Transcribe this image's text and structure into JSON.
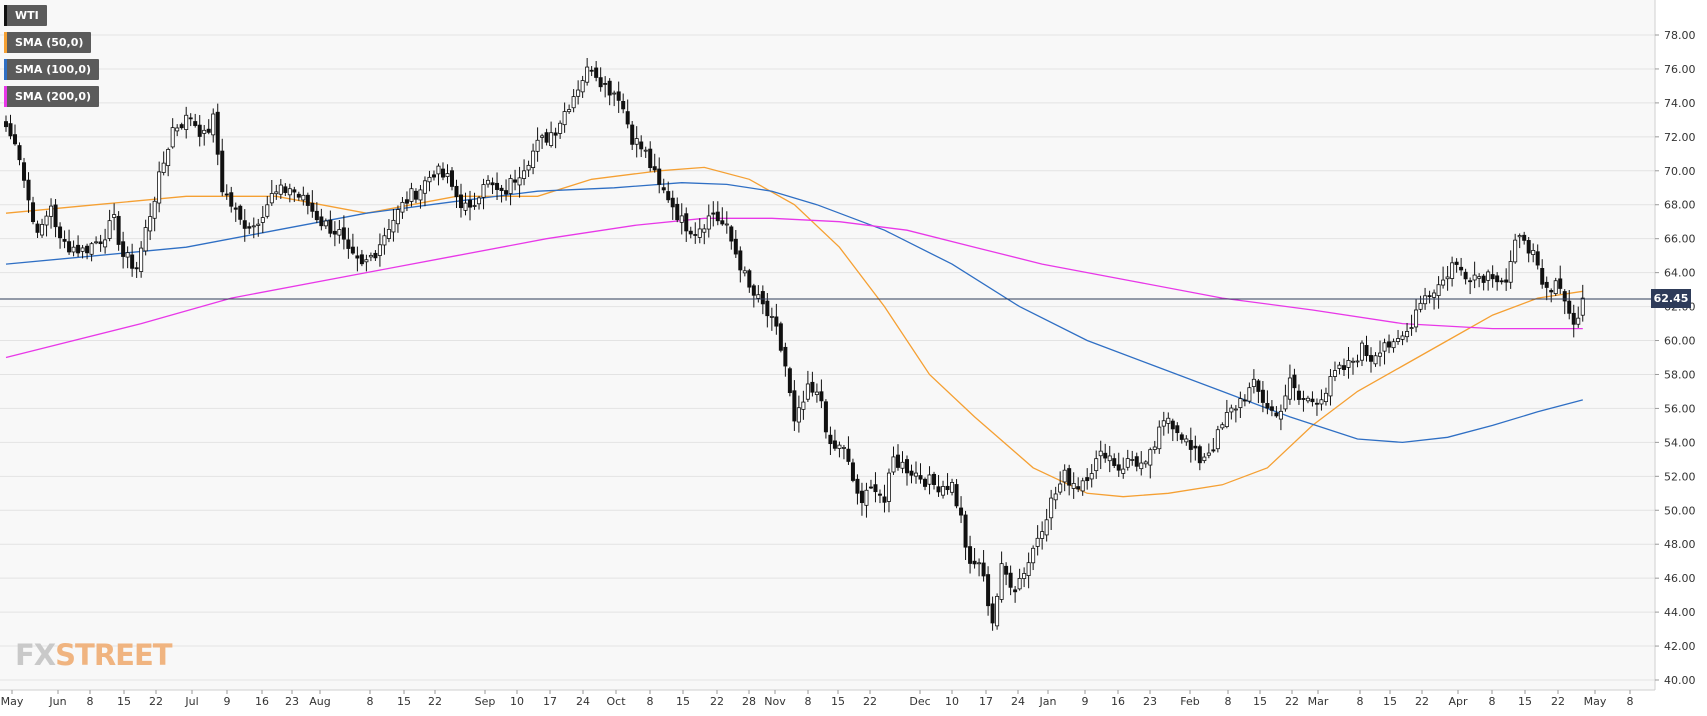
{
  "legend": [
    {
      "label": "WTI",
      "color": "#111111"
    },
    {
      "label": "SMA (50,0)",
      "color": "#f5a033"
    },
    {
      "label": "SMA (100,0)",
      "color": "#2f6fc4"
    },
    {
      "label": "SMA (200,0)",
      "color": "#e838e8"
    }
  ],
  "logo": {
    "part1": "FX",
    "part2": "STREET"
  },
  "last_price": "62.45",
  "chart_data": {
    "type": "candlestick",
    "instrument": "WTI",
    "timeframe": "daily",
    "y_axis": {
      "min": 40,
      "max": 78,
      "step": 2,
      "side": "right",
      "ticks": [
        "40.00",
        "42.00",
        "44.00",
        "46.00",
        "48.00",
        "50.00",
        "52.00",
        "54.00",
        "56.00",
        "58.00",
        "60.00",
        "62.00",
        "64.00",
        "66.00",
        "68.00",
        "70.00",
        "72.00",
        "74.00",
        "76.00",
        "78.00"
      ]
    },
    "x_axis": {
      "labels": [
        "May",
        "Jun",
        "8",
        "15",
        "22",
        "Jul",
        "9",
        "16",
        "23",
        "Aug",
        "8",
        "15",
        "22",
        "Sep",
        "10",
        "17",
        "24",
        "Oct",
        "8",
        "15",
        "22",
        "28",
        "Nov",
        "8",
        "15",
        "22",
        "Dec",
        "10",
        "17",
        "24",
        "Jan",
        "9",
        "16",
        "23",
        "Feb",
        "8",
        "15",
        "22",
        "Mar",
        "8",
        "15",
        "22",
        "Apr",
        "8",
        "15",
        "22",
        "May",
        "8"
      ]
    },
    "current_price": 62.45,
    "grid": true,
    "close_keypoints": [
      [
        0,
        72.6
      ],
      [
        3,
        71.0
      ],
      [
        6,
        67.0
      ],
      [
        8,
        66.5
      ],
      [
        10,
        68.0
      ],
      [
        12,
        65.8
      ],
      [
        17,
        65.3
      ],
      [
        21,
        66.0
      ],
      [
        24,
        67.0
      ],
      [
        26,
        65.0
      ],
      [
        29,
        64.3
      ],
      [
        31,
        66.5
      ],
      [
        34,
        69.5
      ],
      [
        37,
        72.5
      ],
      [
        41,
        73.2
      ],
      [
        44,
        72.0
      ],
      [
        46,
        73.0
      ],
      [
        48,
        69.0
      ],
      [
        52,
        67.0
      ],
      [
        55,
        66.8
      ],
      [
        59,
        68.5
      ],
      [
        63,
        69.0
      ],
      [
        67,
        68.0
      ],
      [
        70,
        67.0
      ],
      [
        74,
        66.3
      ],
      [
        76,
        65.0
      ],
      [
        79,
        64.3
      ],
      [
        82,
        65.3
      ],
      [
        85,
        66.8
      ],
      [
        89,
        68.3
      ],
      [
        92,
        69.0
      ],
      [
        95,
        70.0
      ],
      [
        98,
        69.5
      ],
      [
        100,
        68.5
      ],
      [
        103,
        67.5
      ],
      [
        106,
        69.5
      ],
      [
        110,
        68.5
      ],
      [
        114,
        70.0
      ],
      [
        118,
        71.5
      ],
      [
        122,
        72.5
      ],
      [
        125,
        74.0
      ],
      [
        128,
        75.5
      ],
      [
        130,
        76.2
      ],
      [
        133,
        75.0
      ],
      [
        136,
        74.5
      ],
      [
        139,
        72.0
      ],
      [
        142,
        71.0
      ],
      [
        145,
        69.0
      ],
      [
        147,
        68.5
      ],
      [
        150,
        67.0
      ],
      [
        153,
        66.5
      ],
      [
        157,
        67.5
      ],
      [
        160,
        66.5
      ],
      [
        163,
        64.5
      ],
      [
        165,
        63.0
      ],
      [
        168,
        62.0
      ],
      [
        171,
        60.5
      ],
      [
        173,
        58.5
      ],
      [
        175,
        55.0
      ],
      [
        178,
        57.0
      ],
      [
        181,
        56.5
      ],
      [
        183,
        53.5
      ],
      [
        186,
        53.8
      ],
      [
        188,
        51.5
      ],
      [
        190,
        50.5
      ],
      [
        193,
        51.5
      ],
      [
        195,
        50.5
      ],
      [
        197,
        53.0
      ],
      [
        200,
        52.5
      ],
      [
        203,
        52.0
      ],
      [
        206,
        51.5
      ],
      [
        210,
        51.5
      ],
      [
        212,
        49.5
      ],
      [
        214,
        46.5
      ],
      [
        216,
        47.0
      ],
      [
        219,
        43.5
      ],
      [
        221,
        46.5
      ],
      [
        224,
        45.5
      ],
      [
        227,
        47.0
      ],
      [
        229,
        48.5
      ],
      [
        232,
        50.5
      ],
      [
        235,
        52.0
      ],
      [
        238,
        51.5
      ],
      [
        241,
        52.5
      ],
      [
        244,
        53.5
      ],
      [
        247,
        52.5
      ],
      [
        250,
        53.0
      ],
      [
        253,
        52.5
      ],
      [
        256,
        54.5
      ],
      [
        258,
        55.5
      ],
      [
        261,
        54.5
      ],
      [
        263,
        53.5
      ],
      [
        265,
        53.0
      ],
      [
        268,
        53.8
      ],
      [
        271,
        55.5
      ],
      [
        274,
        56.5
      ],
      [
        277,
        57.3
      ],
      [
        279,
        56.5
      ],
      [
        282,
        55.5
      ],
      [
        285,
        57.5
      ],
      [
        287,
        56.5
      ],
      [
        290,
        56.5
      ],
      [
        293,
        57.0
      ],
      [
        295,
        58.0
      ],
      [
        298,
        58.5
      ],
      [
        301,
        59.5
      ],
      [
        303,
        59.0
      ],
      [
        306,
        60.0
      ],
      [
        308,
        59.5
      ],
      [
        311,
        60.5
      ],
      [
        314,
        62.5
      ],
      [
        316,
        62.8
      ],
      [
        319,
        63.5
      ],
      [
        321,
        64.5
      ],
      [
        324,
        64.0
      ],
      [
        327,
        63.8
      ],
      [
        330,
        64.0
      ],
      [
        333,
        63.5
      ],
      [
        335,
        65.5
      ],
      [
        337,
        66.2
      ],
      [
        339,
        65.0
      ],
      [
        341,
        63.0
      ],
      [
        343,
        62.8
      ],
      [
        345,
        63.5
      ],
      [
        347,
        61.5
      ],
      [
        349,
        61.2
      ],
      [
        350,
        62.5
      ]
    ],
    "series": [
      {
        "name": "SMA (50,0)",
        "color": "#f5a033",
        "points": [
          [
            0,
            67.5
          ],
          [
            20,
            68.0
          ],
          [
            40,
            68.5
          ],
          [
            60,
            68.5
          ],
          [
            80,
            67.5
          ],
          [
            100,
            68.5
          ],
          [
            118,
            68.5
          ],
          [
            130,
            69.5
          ],
          [
            145,
            70.0
          ],
          [
            155,
            70.2
          ],
          [
            165,
            69.5
          ],
          [
            175,
            68.0
          ],
          [
            185,
            65.5
          ],
          [
            195,
            62.0
          ],
          [
            205,
            58.0
          ],
          [
            215,
            55.5
          ],
          [
            228,
            52.5
          ],
          [
            240,
            51.0
          ],
          [
            248,
            50.8
          ],
          [
            258,
            51.0
          ],
          [
            270,
            51.5
          ],
          [
            280,
            52.5
          ],
          [
            290,
            55.0
          ],
          [
            300,
            57.0
          ],
          [
            310,
            58.5
          ],
          [
            320,
            60.0
          ],
          [
            330,
            61.5
          ],
          [
            340,
            62.5
          ],
          [
            350,
            62.9
          ]
        ]
      },
      {
        "name": "SMA (100,0)",
        "color": "#2f6fc4",
        "points": [
          [
            0,
            64.5
          ],
          [
            20,
            65.0
          ],
          [
            40,
            65.5
          ],
          [
            60,
            66.5
          ],
          [
            80,
            67.5
          ],
          [
            100,
            68.2
          ],
          [
            118,
            68.8
          ],
          [
            135,
            69.0
          ],
          [
            150,
            69.3
          ],
          [
            160,
            69.2
          ],
          [
            170,
            68.8
          ],
          [
            180,
            68.0
          ],
          [
            195,
            66.5
          ],
          [
            210,
            64.5
          ],
          [
            225,
            62.0
          ],
          [
            240,
            60.0
          ],
          [
            255,
            58.5
          ],
          [
            270,
            57.0
          ],
          [
            285,
            55.5
          ],
          [
            300,
            54.2
          ],
          [
            310,
            54.0
          ],
          [
            320,
            54.3
          ],
          [
            330,
            55.0
          ],
          [
            340,
            55.8
          ],
          [
            350,
            56.5
          ]
        ]
      },
      {
        "name": "SMA (200,0)",
        "color": "#e838e8",
        "points": [
          [
            0,
            59.0
          ],
          [
            30,
            61.0
          ],
          [
            50,
            62.5
          ],
          [
            80,
            64.0
          ],
          [
            100,
            65.0
          ],
          [
            120,
            66.0
          ],
          [
            140,
            66.8
          ],
          [
            155,
            67.2
          ],
          [
            170,
            67.2
          ],
          [
            185,
            67.0
          ],
          [
            200,
            66.5
          ],
          [
            215,
            65.5
          ],
          [
            230,
            64.5
          ],
          [
            250,
            63.5
          ],
          [
            270,
            62.5
          ],
          [
            290,
            61.8
          ],
          [
            310,
            61.0
          ],
          [
            330,
            60.7
          ],
          [
            350,
            60.7
          ]
        ]
      }
    ]
  }
}
